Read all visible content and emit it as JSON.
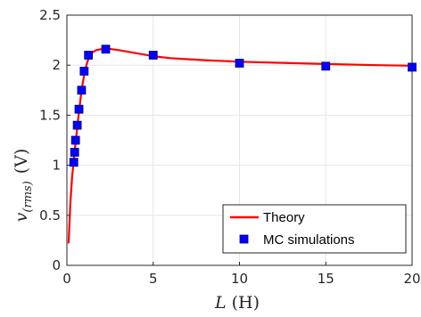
{
  "chart_data": {
    "type": "line",
    "title": "",
    "xlabel": {
      "var": "L",
      "unit": "(H)"
    },
    "ylabel": {
      "var": "v",
      "sub": "(rms)",
      "unit": "(V)"
    },
    "xlim": [
      0,
      20
    ],
    "ylim": [
      0,
      2.5
    ],
    "xticks": [
      0,
      5,
      10,
      15,
      20
    ],
    "yticks": [
      0,
      0.5,
      1,
      1.5,
      2,
      2.5
    ],
    "xtick_labels": [
      "0",
      "5",
      "10",
      "15",
      "20"
    ],
    "ytick_labels": [
      "0",
      "0.5",
      "1",
      "1.5",
      "2",
      "2.5"
    ],
    "grid": true,
    "legend": {
      "position": "bottom-right"
    },
    "series": [
      {
        "name": "Theory",
        "kind": "line",
        "color": "#ff0000",
        "x": [
          0.1,
          0.2,
          0.3,
          0.4,
          0.5,
          0.6,
          0.7,
          0.8,
          0.9,
          1.0,
          1.1,
          1.2,
          1.3,
          1.4,
          1.5,
          1.7,
          2.0,
          2.3,
          2.6,
          3.0,
          4.0,
          5.0,
          6.0,
          7.0,
          8.0,
          10.0,
          12.0,
          15.0,
          18.0,
          20.0
        ],
        "y": [
          0.22,
          0.62,
          0.88,
          1.05,
          1.22,
          1.38,
          1.53,
          1.68,
          1.8,
          1.9,
          1.98,
          2.04,
          2.08,
          2.11,
          2.13,
          2.15,
          2.16,
          2.17,
          2.16,
          2.15,
          2.12,
          2.09,
          2.07,
          2.06,
          2.05,
          2.035,
          2.025,
          2.012,
          2.0,
          1.995
        ]
      },
      {
        "name": "MC simulations",
        "kind": "scatter",
        "color": "#0000ff",
        "edgecolor": "#000080",
        "x": [
          0.4,
          0.45,
          0.5,
          0.6,
          0.7,
          0.85,
          1.0,
          1.25,
          2.25,
          5.0,
          10.0,
          15.0,
          20.0
        ],
        "y": [
          1.03,
          1.13,
          1.25,
          1.4,
          1.56,
          1.75,
          1.94,
          2.1,
          2.16,
          2.1,
          2.02,
          1.99,
          1.98
        ]
      }
    ]
  }
}
